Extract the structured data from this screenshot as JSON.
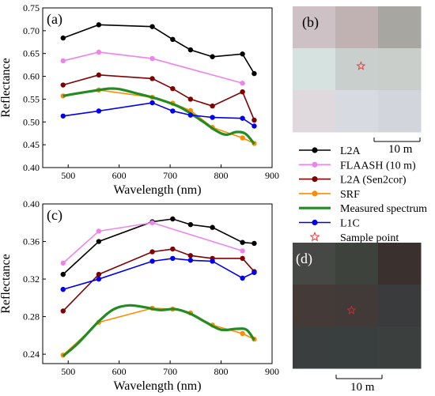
{
  "panel_labels": {
    "a": "(a)",
    "b": "(b)",
    "c": "(c)",
    "d": "(d)"
  },
  "scale_bars": {
    "b": "10 m",
    "d": "10 m"
  },
  "legend": {
    "entries": [
      {
        "label": "L2A",
        "color": "#000000",
        "marker": "dot"
      },
      {
        "label": "FLAASH (10 m)",
        "color": "#ee82ee",
        "marker": "dot"
      },
      {
        "label": "L2A (Sen2cor)",
        "color": "#800000",
        "marker": "dot"
      },
      {
        "label": "SRF",
        "color": "#ff8c00",
        "marker": "dot"
      },
      {
        "label": "Measured spectrum",
        "color": "#228b22",
        "marker": "line"
      },
      {
        "label": "L1C",
        "color": "#0000ee",
        "marker": "dot"
      },
      {
        "label": "Sample point",
        "color": "#ff3030",
        "marker": "star"
      }
    ]
  },
  "images": {
    "b": {
      "grid": [
        [
          "#cdc1c6",
          "#c0b1b3",
          "#a8a6a1"
        ],
        [
          "#d5e2e0",
          "#c8cfcc",
          "#c9ceca"
        ],
        [
          "#dfd9de",
          "#d7dae1",
          "#d2d5db"
        ]
      ],
      "sample_point_color": "#e64040"
    },
    "d": {
      "grid": [
        [
          "#464845",
          "#3e423d",
          "#3a302e"
        ],
        [
          "#443a37",
          "#423a38",
          "#3a3b3c"
        ],
        [
          "#3b3e3f",
          "#393e3e",
          "#3b3f3e"
        ]
      ],
      "sample_point_color": "#c03030"
    }
  },
  "chart_data": [
    {
      "type": "line",
      "panel": "(a)",
      "xlabel": "Wavelength (nm)",
      "ylabel": "Reflectance",
      "xlim": [
        450,
        900
      ],
      "ylim": [
        0.4,
        0.75
      ],
      "xticks": [
        500,
        600,
        700,
        800,
        900
      ],
      "yticks": [
        0.4,
        0.45,
        0.5,
        0.55,
        0.6,
        0.65,
        0.7,
        0.75
      ],
      "series": [
        {
          "name": "L2A",
          "x": [
            490,
            560,
            665,
            705,
            740,
            783,
            842,
            865
          ],
          "y": [
            0.684,
            0.713,
            0.709,
            0.681,
            0.658,
            0.643,
            0.649,
            0.606
          ]
        },
        {
          "name": "FLAASH (10 m)",
          "x": [
            490,
            560,
            665,
            842
          ],
          "y": [
            0.634,
            0.653,
            0.639,
            0.585
          ]
        },
        {
          "name": "L2A (Sen2cor)",
          "x": [
            490,
            560,
            665,
            705,
            740,
            783,
            842,
            865
          ],
          "y": [
            0.581,
            0.603,
            0.595,
            0.573,
            0.55,
            0.535,
            0.566,
            0.504
          ]
        },
        {
          "name": "SRF",
          "x": [
            490,
            560,
            665,
            705,
            740,
            783,
            842,
            865
          ],
          "y": [
            0.557,
            0.57,
            0.554,
            0.541,
            0.525,
            0.488,
            0.465,
            0.453
          ]
        },
        {
          "name": "Measured spectrum",
          "x": [
            490,
            520,
            560,
            580,
            600,
            640,
            680,
            720,
            760,
            790,
            810,
            830,
            848,
            865
          ],
          "y": [
            0.557,
            0.563,
            0.57,
            0.573,
            0.572,
            0.561,
            0.549,
            0.532,
            0.504,
            0.481,
            0.472,
            0.478,
            0.474,
            0.452
          ]
        },
        {
          "name": "L1C",
          "x": [
            490,
            560,
            665,
            705,
            740,
            783,
            842,
            865
          ],
          "y": [
            0.513,
            0.524,
            0.542,
            0.524,
            0.515,
            0.51,
            0.508,
            0.491
          ]
        }
      ]
    },
    {
      "type": "line",
      "panel": "(c)",
      "xlabel": "Wavelength (nm)",
      "ylabel": "Reflectance",
      "xlim": [
        450,
        900
      ],
      "ylim": [
        0.23,
        0.4
      ],
      "xticks": [
        500,
        600,
        700,
        800,
        900
      ],
      "yticks": [
        0.24,
        0.28,
        0.32,
        0.36,
        0.4
      ],
      "series": [
        {
          "name": "L2A",
          "x": [
            490,
            560,
            665,
            705,
            740,
            783,
            842,
            865
          ],
          "y": [
            0.325,
            0.36,
            0.381,
            0.384,
            0.378,
            0.375,
            0.359,
            0.358
          ]
        },
        {
          "name": "FLAASH (10 m)",
          "x": [
            490,
            560,
            665,
            842
          ],
          "y": [
            0.337,
            0.371,
            0.38,
            0.35
          ]
        },
        {
          "name": "L2A (Sen2cor)",
          "x": [
            490,
            560,
            665,
            705,
            740,
            783,
            842,
            865
          ],
          "y": [
            0.286,
            0.325,
            0.349,
            0.352,
            0.345,
            0.342,
            0.342,
            0.328
          ]
        },
        {
          "name": "SRF",
          "x": [
            490,
            560,
            665,
            705,
            740,
            783,
            842,
            865
          ],
          "y": [
            0.239,
            0.274,
            0.289,
            0.288,
            0.284,
            0.271,
            0.262,
            0.256
          ]
        },
        {
          "name": "Measured spectrum",
          "x": [
            490,
            520,
            560,
            590,
            620,
            650,
            680,
            710,
            740,
            770,
            800,
            830,
            850,
            865
          ],
          "y": [
            0.238,
            0.252,
            0.275,
            0.288,
            0.292,
            0.29,
            0.287,
            0.288,
            0.283,
            0.274,
            0.266,
            0.267,
            0.266,
            0.255
          ]
        },
        {
          "name": "L1C",
          "x": [
            490,
            560,
            665,
            705,
            740,
            783,
            842,
            865
          ],
          "y": [
            0.309,
            0.32,
            0.339,
            0.342,
            0.34,
            0.339,
            0.321,
            0.327
          ]
        }
      ]
    }
  ]
}
